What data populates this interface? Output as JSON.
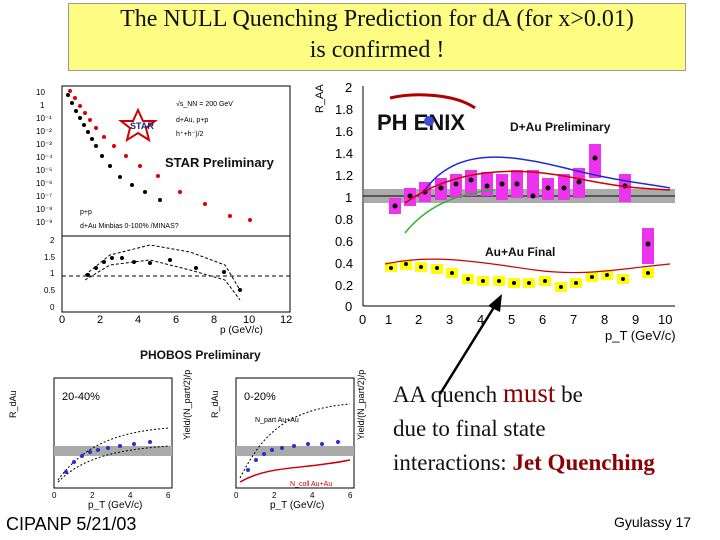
{
  "slide": {
    "title_line1": "The NULL Quenching Prediction for dA (for x>0.01)",
    "title_line2": "is confirmed !",
    "footer_left": "CIPANP 5/21/03",
    "footer_right": "Gyulassy 17",
    "text_line1_a": "AA quench ",
    "text_line1_must": "must",
    "text_line1_b": " be",
    "text_line2": "due to final state",
    "text_line3_a": "interactions: ",
    "text_line3_b": "Jet Quenching",
    "colors": {
      "title_bg": "#fdfd84",
      "highlight": "#8b0000",
      "magenta": "#ee33ee",
      "yellow": "#ffff00"
    }
  },
  "star_plot": {
    "label": "STAR Preliminary",
    "logo": "STAR",
    "legend": [
      "√s_NN = 200 GeV",
      "d+Au, p+p",
      "h⁺+h⁻)/2"
    ],
    "legend_bottom": [
      "p+p",
      "d+Au Minbias 0-100% /MINAS?"
    ],
    "y_ticks_top": [
      "10",
      "1",
      "10⁻¹",
      "10⁻²",
      "10⁻³",
      "10⁻⁴",
      "10⁻⁵",
      "10⁻⁶",
      "10⁻⁷",
      "10⁻⁸",
      "10⁻⁹"
    ],
    "y_ticks_bottom": [
      "2",
      "1.5",
      "1",
      "0.5",
      "0"
    ],
    "x_ticks": [
      "0",
      "2",
      "4",
      "6",
      "8",
      "10",
      "12"
    ],
    "xlabel": "p  (GeV/c)"
  },
  "phenix_plot": {
    "logo": "PH ENIX",
    "label_dau": "D+Au Preliminary",
    "label_auau": "Au+Au Final",
    "ylabel": "R_AA",
    "y_ticks": [
      "2",
      "1.8",
      "1.6",
      "1.4",
      "1.2",
      "1",
      "0.8",
      "0.6",
      "0.4",
      "0.2",
      "0"
    ],
    "x_ticks": [
      "0",
      "1",
      "2",
      "3",
      "4",
      "5",
      "6",
      "7",
      "8",
      "9",
      "10"
    ],
    "xlabel": "p_T (GeV/c)"
  },
  "phobos_plot": {
    "label": "PHOBOS Preliminary",
    "panel1_label": "20-40%",
    "panel2_label": "0-20%",
    "ylabel_left": "R_dAu",
    "ylabel_mid": "Yield/(N_part/2)/p",
    "ylabel_right": "R_dAu",
    "ylabel_right2": "Yield/(N_part/2)/p",
    "xlabel": "p_T (GeV/c)",
    "x_ticks": [
      "0",
      "2",
      "4",
      "6"
    ],
    "annot_top": "N_part Au+Au",
    "annot_bottom": "N_coll Au+Au"
  }
}
